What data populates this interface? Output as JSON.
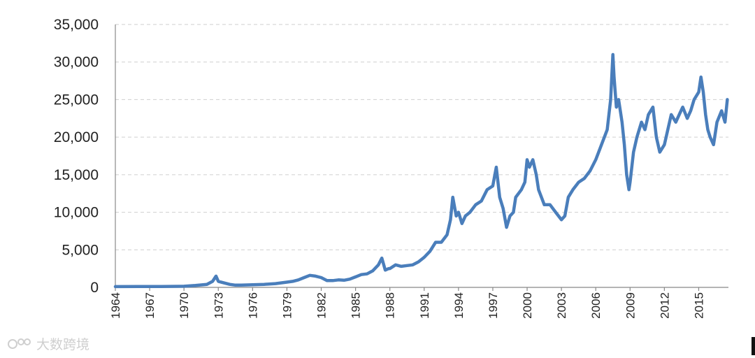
{
  "chart_data": {
    "type": "line",
    "title": "",
    "xlabel": "",
    "ylabel": "",
    "ylim": [
      0,
      35000
    ],
    "yticks": [
      0,
      5000,
      10000,
      15000,
      20000,
      25000,
      30000,
      35000
    ],
    "ytick_labels": [
      "0",
      "5,000",
      "10,000",
      "15,000",
      "20,000",
      "25,000",
      "30,000",
      "35,000"
    ],
    "xlim": [
      1964,
      2017.6
    ],
    "xticks": [
      1964,
      1967,
      1970,
      1973,
      1976,
      1979,
      1982,
      1985,
      1988,
      1991,
      1994,
      1997,
      2000,
      2003,
      2006,
      2009,
      2012,
      2015
    ],
    "xtick_labels": [
      "1964",
      "1967",
      "1970",
      "1973",
      "1976",
      "1979",
      "1982",
      "1985",
      "1988",
      "1991",
      "1994",
      "1997",
      "2000",
      "2003",
      "2006",
      "2009",
      "2012",
      "2015"
    ],
    "grid": "horizontal dashed",
    "legend": "none",
    "series": [
      {
        "color": "#4a7ebb",
        "x": [
          1964.0,
          1966.0,
          1968.0,
          1970.0,
          1971.0,
          1972.0,
          1972.5,
          1972.8,
          1973.0,
          1973.5,
          1974.0,
          1974.5,
          1975.0,
          1976.0,
          1977.0,
          1978.0,
          1979.0,
          1979.5,
          1980.0,
          1980.5,
          1981.0,
          1981.5,
          1982.0,
          1982.5,
          1983.0,
          1983.5,
          1984.0,
          1984.5,
          1985.0,
          1985.5,
          1986.0,
          1986.5,
          1987.0,
          1987.3,
          1987.6,
          1987.9,
          1988.0,
          1988.5,
          1989.0,
          1989.5,
          1990.0,
          1990.5,
          1991.0,
          1991.5,
          1992.0,
          1992.5,
          1993.0,
          1993.3,
          1993.5,
          1993.8,
          1994.0,
          1994.3,
          1994.6,
          1995.0,
          1995.5,
          1996.0,
          1996.5,
          1997.0,
          1997.3,
          1997.6,
          1997.9,
          1998.2,
          1998.5,
          1998.8,
          1999.0,
          1999.5,
          1999.8,
          2000.0,
          2000.2,
          2000.5,
          2000.8,
          2001.0,
          2001.5,
          2002.0,
          2002.5,
          2003.0,
          2003.3,
          2003.6,
          2004.0,
          2004.5,
          2005.0,
          2005.5,
          2006.0,
          2006.5,
          2007.0,
          2007.3,
          2007.5,
          2007.6,
          2007.8,
          2008.0,
          2008.3,
          2008.5,
          2008.7,
          2008.9,
          2009.0,
          2009.3,
          2009.6,
          2010.0,
          2010.3,
          2010.6,
          2011.0,
          2011.3,
          2011.6,
          2012.0,
          2012.3,
          2012.6,
          2013.0,
          2013.3,
          2013.6,
          2014.0,
          2014.3,
          2014.6,
          2015.0,
          2015.2,
          2015.4,
          2015.6,
          2015.8,
          2016.0,
          2016.3,
          2016.6,
          2017.0,
          2017.3,
          2017.5
        ],
        "y": [
          100,
          110,
          120,
          150,
          250,
          400,
          800,
          1500,
          800,
          600,
          400,
          300,
          300,
          350,
          400,
          500,
          700,
          800,
          1000,
          1300,
          1600,
          1500,
          1300,
          900,
          900,
          1000,
          950,
          1100,
          1400,
          1700,
          1800,
          2200,
          3000,
          3900,
          2300,
          2500,
          2500,
          3000,
          2800,
          2900,
          3000,
          3400,
          4000,
          4800,
          6000,
          6000,
          7000,
          9000,
          12000,
          9500,
          10000,
          8500,
          9500,
          10000,
          11000,
          11500,
          13000,
          13500,
          16000,
          12000,
          10500,
          8000,
          9500,
          10000,
          12000,
          13000,
          14000,
          17000,
          16000,
          17000,
          15000,
          13000,
          11000,
          11000,
          10000,
          9000,
          9500,
          12000,
          13000,
          14000,
          14500,
          15500,
          17000,
          19000,
          21000,
          25000,
          31000,
          28000,
          24000,
          25000,
          22000,
          19000,
          15000,
          13000,
          14000,
          18000,
          20000,
          22000,
          21000,
          23000,
          24000,
          20000,
          18000,
          19000,
          21000,
          23000,
          22000,
          23000,
          24000,
          22500,
          23500,
          25000,
          26000,
          28000,
          26000,
          23000,
          21000,
          20000,
          19000,
          22000,
          23500,
          22000,
          25000
        ]
      }
    ]
  },
  "watermark": {
    "text": "大数跨境"
  }
}
